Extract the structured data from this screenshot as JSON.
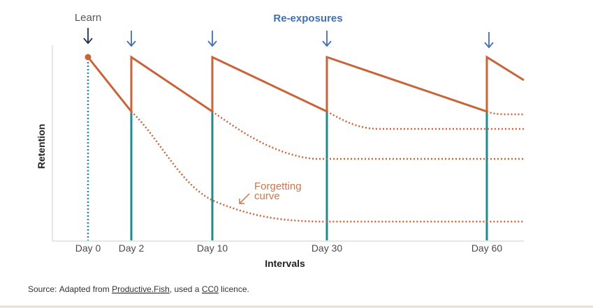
{
  "header": {
    "learn": "Learn",
    "reexposures": "Re-exposures"
  },
  "axes": {
    "y_label": "Retention",
    "x_label": "Intervals",
    "x_labels": [
      "Day 0",
      "Day 2",
      "Day 10",
      "Day 30",
      "Day 60"
    ]
  },
  "annotation": {
    "lines": [
      "Forgetting",
      "curve"
    ]
  },
  "source": {
    "prefix": "Source: Adapted from ",
    "link1": "Productive.Fish",
    "middle": ", used a ",
    "link2": "CC0",
    "suffix": " licence."
  }
}
